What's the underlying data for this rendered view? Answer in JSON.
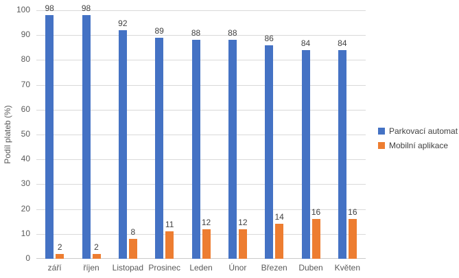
{
  "chart_data": {
    "type": "bar",
    "title": "",
    "xlabel": "",
    "ylabel": "Podíl plateb (%)",
    "categories": [
      "září",
      "říjen",
      "Listopad",
      "Prosinec",
      "Leden",
      "Únor",
      "Březen",
      "Duben",
      "Květen"
    ],
    "series": [
      {
        "name": "Parkovací automat",
        "color": "#4472C4",
        "values": [
          98,
          98,
          92,
          89,
          88,
          88,
          86,
          84,
          84
        ]
      },
      {
        "name": "Mobilní aplikace",
        "color": "#ED7D31",
        "values": [
          2,
          2,
          8,
          11,
          12,
          12,
          14,
          16,
          16
        ]
      }
    ],
    "ylim": [
      0,
      100
    ],
    "yticks": [
      0,
      10,
      20,
      30,
      40,
      50,
      60,
      70,
      80,
      90,
      100
    ],
    "grid": true,
    "data_labels": true,
    "legend_position": "right"
  },
  "colors": {
    "background": "#ffffff",
    "gridline": "#d9d9d9",
    "axis_line": "#c9c9c9",
    "tick_text": "#595959",
    "data_label_text": "#404040",
    "legend_text": "#404040"
  }
}
